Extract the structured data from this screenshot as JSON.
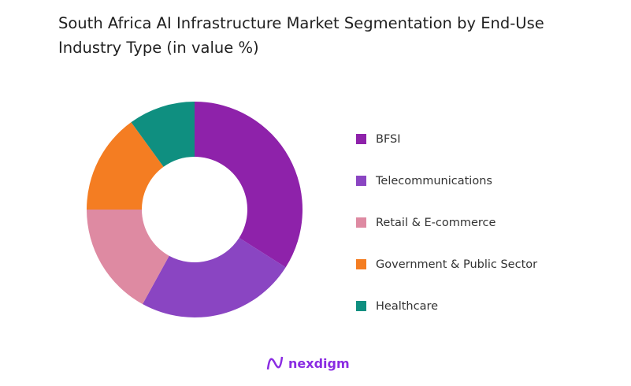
{
  "chart_data": {
    "type": "pie",
    "donut": true,
    "title": "South Africa AI Infrastructure Market Segmentation by End-Use Industry Type (in value %)",
    "categories": [
      "BFSI",
      "Telecommunications",
      "Retail & E-commerce",
      "Government & Public Sector",
      "Healthcare"
    ],
    "values": [
      34,
      24,
      17,
      15,
      10
    ],
    "colors": [
      "#8E22AA",
      "#8A45C2",
      "#DE8AA2",
      "#F47D22",
      "#0F8F80"
    ],
    "legend_position": "right"
  },
  "brand": {
    "name": "nexdigm"
  }
}
